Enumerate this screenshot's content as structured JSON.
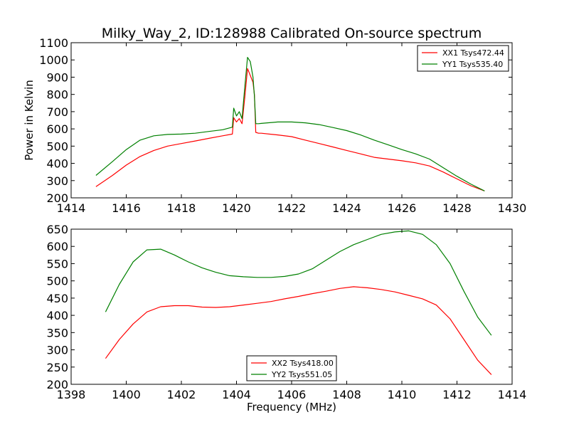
{
  "title": "Milky_Way_2, ID:128988 Calibrated On-source spectrum",
  "chart_data": [
    {
      "type": "line",
      "ylabel": "Power in Kelvin",
      "xlabel": "",
      "xlim": [
        1414,
        1430
      ],
      "ylim": [
        200,
        1100
      ],
      "xticks": [
        1414,
        1416,
        1418,
        1420,
        1422,
        1424,
        1426,
        1428,
        1430
      ],
      "yticks": [
        200,
        300,
        400,
        500,
        600,
        700,
        800,
        900,
        1000,
        1100
      ],
      "grid": false,
      "legend_position": "top-right",
      "series": [
        {
          "name": "XX1 Tsys472.44",
          "color": "#ff0000",
          "x": [
            1414.9,
            1415.5,
            1416,
            1416.5,
            1417,
            1417.5,
            1418,
            1418.5,
            1419,
            1419.5,
            1419.85,
            1419.9,
            1420.0,
            1420.1,
            1420.2,
            1420.3,
            1420.4,
            1420.5,
            1420.6,
            1420.65,
            1420.7,
            1420.8,
            1420.9,
            1421.5,
            1422,
            1422.5,
            1423,
            1423.5,
            1424,
            1424.5,
            1425,
            1425.5,
            1426,
            1426.5,
            1427,
            1427.5,
            1428,
            1428.5,
            1429
          ],
          "y": [
            265,
            330,
            390,
            440,
            475,
            500,
            515,
            530,
            545,
            560,
            570,
            665,
            640,
            660,
            630,
            780,
            950,
            910,
            870,
            800,
            580,
            575,
            575,
            565,
            555,
            535,
            515,
            495,
            475,
            455,
            435,
            425,
            415,
            403,
            385,
            350,
            310,
            270,
            240
          ]
        },
        {
          "name": "YY1 Tsys535.40",
          "color": "#008000",
          "x": [
            1414.9,
            1415.5,
            1416,
            1416.5,
            1417,
            1417.5,
            1418,
            1418.5,
            1419,
            1419.5,
            1419.85,
            1419.9,
            1420.0,
            1420.1,
            1420.2,
            1420.3,
            1420.4,
            1420.5,
            1420.6,
            1420.65,
            1420.7,
            1420.8,
            1420.9,
            1421.5,
            1422,
            1422.5,
            1423,
            1423.5,
            1424,
            1424.5,
            1425,
            1425.5,
            1426,
            1426.5,
            1427,
            1427.5,
            1428,
            1428.5,
            1429
          ],
          "y": [
            330,
            410,
            480,
            535,
            560,
            568,
            570,
            575,
            585,
            595,
            610,
            720,
            675,
            700,
            660,
            840,
            1015,
            990,
            900,
            790,
            630,
            630,
            632,
            640,
            640,
            635,
            625,
            608,
            590,
            565,
            535,
            508,
            480,
            455,
            425,
            375,
            325,
            280,
            240
          ]
        }
      ]
    },
    {
      "type": "line",
      "ylabel": "",
      "xlabel": "Frequency (MHz)",
      "xlim": [
        1398,
        1414
      ],
      "ylim": [
        200,
        650
      ],
      "xticks": [
        1398,
        1400,
        1402,
        1404,
        1406,
        1408,
        1410,
        1412,
        1414
      ],
      "yticks": [
        200,
        250,
        300,
        350,
        400,
        450,
        500,
        550,
        600,
        650
      ],
      "grid": false,
      "legend_position": "bottom-center",
      "series": [
        {
          "name": "XX2 Tsys418.00",
          "color": "#ff0000",
          "x": [
            1399.25,
            1399.75,
            1400.25,
            1400.75,
            1401.25,
            1401.75,
            1402.25,
            1402.75,
            1403.25,
            1403.75,
            1404.25,
            1404.75,
            1405.25,
            1405.75,
            1406.25,
            1406.75,
            1407.25,
            1407.75,
            1408.25,
            1408.75,
            1409.25,
            1409.75,
            1410.25,
            1410.75,
            1411.25,
            1411.75,
            1412.25,
            1412.75,
            1413.25
          ],
          "y": [
            275,
            330,
            375,
            410,
            425,
            428,
            428,
            424,
            423,
            425,
            430,
            435,
            440,
            448,
            455,
            463,
            470,
            478,
            483,
            480,
            475,
            468,
            458,
            448,
            430,
            390,
            330,
            270,
            228
          ]
        },
        {
          "name": "YY2 Tsys551.05",
          "color": "#008000",
          "x": [
            1399.25,
            1399.75,
            1400.25,
            1400.75,
            1401.25,
            1401.75,
            1402.25,
            1402.75,
            1403.25,
            1403.75,
            1404.25,
            1404.75,
            1405.25,
            1405.75,
            1406.25,
            1406.75,
            1407.25,
            1407.75,
            1408.25,
            1408.75,
            1409.25,
            1409.75,
            1410.25,
            1410.75,
            1411.25,
            1411.75,
            1412.25,
            1412.75,
            1413.25
          ],
          "y": [
            410,
            490,
            555,
            590,
            592,
            575,
            555,
            538,
            525,
            515,
            512,
            510,
            510,
            513,
            520,
            535,
            560,
            585,
            605,
            620,
            635,
            642,
            645,
            635,
            605,
            550,
            470,
            395,
            342
          ]
        }
      ]
    }
  ]
}
